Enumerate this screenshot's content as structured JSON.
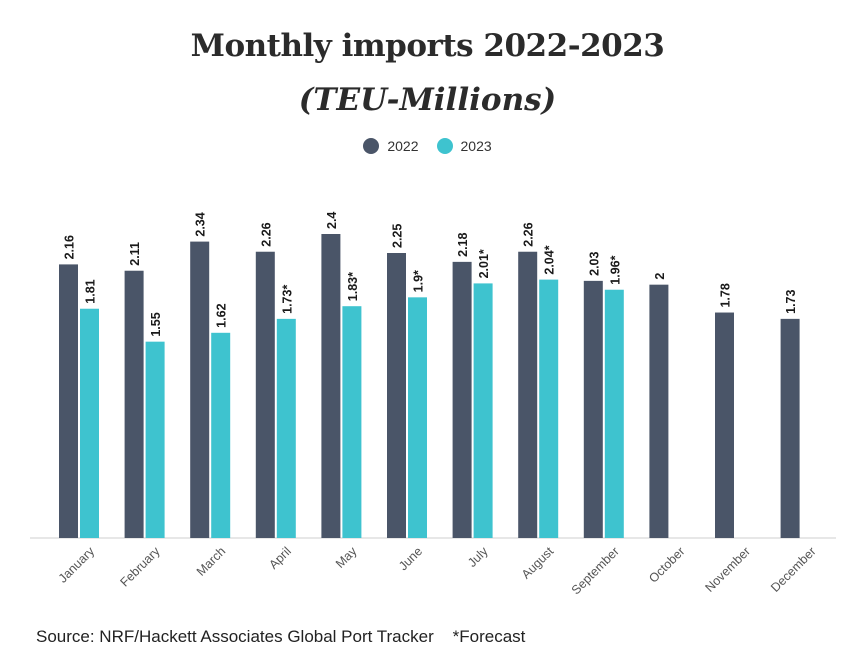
{
  "chart_data": {
    "type": "bar",
    "title": "Monthly imports 2022-2023",
    "subtitle": "(TEU-Millions)",
    "categories": [
      "January",
      "February",
      "March",
      "April",
      "May",
      "June",
      "July",
      "August",
      "September",
      "October",
      "November",
      "December"
    ],
    "series": [
      {
        "name": "2022",
        "color": "#4a5568",
        "values": [
          2.16,
          2.11,
          2.34,
          2.26,
          2.4,
          2.25,
          2.18,
          2.26,
          2.03,
          2,
          1.78,
          1.73
        ],
        "labels": [
          "2.16",
          "2.11",
          "2.34",
          "2.26",
          "2.4",
          "2.25",
          "2.18",
          "2.26",
          "2.03",
          "2",
          "1.78",
          "1.73"
        ]
      },
      {
        "name": "2023",
        "color": "#3ec3cf",
        "values": [
          1.81,
          1.55,
          1.62,
          1.73,
          1.83,
          1.9,
          2.01,
          2.04,
          1.96,
          null,
          null,
          null
        ],
        "labels": [
          "1.81",
          "1.55",
          "1.62",
          "1.73*",
          "1.83*",
          "1.9*",
          "2.01*",
          "2.04*",
          "1.96*",
          "",
          "",
          ""
        ]
      }
    ],
    "ylim": [
      0,
      2.4
    ],
    "grid": false,
    "legend_position": "top-center",
    "source": "Source: NRF/Hackett Associates Global Port Tracker    *Forecast"
  }
}
